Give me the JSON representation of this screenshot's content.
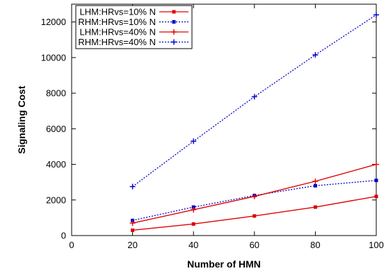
{
  "chart_data": {
    "type": "line",
    "title": "",
    "xlabel": "Number of HMN",
    "ylabel": "Signaling Cost",
    "xlim": [
      0,
      100
    ],
    "ylim": [
      0,
      13000
    ],
    "xticks": [
      0,
      20,
      40,
      60,
      80,
      100
    ],
    "yticks": [
      0,
      2000,
      4000,
      6000,
      8000,
      10000,
      12000
    ],
    "grid": false,
    "legend_position": "top-left",
    "x": [
      20,
      40,
      60,
      80,
      100
    ],
    "series": [
      {
        "name": "LHM:HRvs=10% N",
        "values": [
          300,
          650,
          1100,
          1600,
          2200
        ],
        "color": "#e00000",
        "dash": "solid",
        "marker": "square"
      },
      {
        "name": "RHM:HRvs=10% N",
        "values": [
          850,
          1600,
          2250,
          2800,
          3100
        ],
        "color": "#0000cc",
        "dash": "dotted",
        "marker": "square"
      },
      {
        "name": "LHM:HRvs=40% N",
        "values": [
          700,
          1450,
          2200,
          3050,
          4000
        ],
        "color": "#e00000",
        "dash": "solid",
        "marker": "plus"
      },
      {
        "name": "RHM:HRvs=40% N",
        "values": [
          2750,
          5300,
          7800,
          10150,
          12400
        ],
        "color": "#0000cc",
        "dash": "dotted",
        "marker": "plus"
      }
    ]
  }
}
